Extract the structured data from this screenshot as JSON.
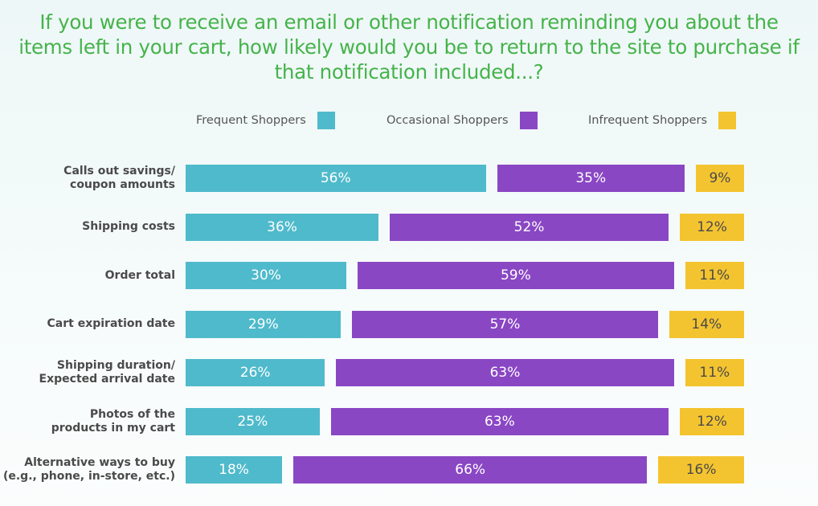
{
  "chart_data": {
    "type": "bar",
    "orientation": "horizontal",
    "stacked": true,
    "title": "If you were to receive an email or other notification reminding you about the items left in your cart, how likely would you be to return to the site to purchase if that notification included...?",
    "categories": [
      [
        "Calls out savings/",
        "coupon amounts"
      ],
      [
        "Shipping costs"
      ],
      [
        "Order total"
      ],
      [
        "Cart expiration date"
      ],
      [
        "Shipping duration/",
        "Expected arrival date"
      ],
      [
        "Photos of the",
        "products in my cart"
      ],
      [
        "Alternative ways to buy",
        "(e.g., phone, in-store, etc.)"
      ]
    ],
    "series": [
      {
        "name": "Frequent Shoppers",
        "color": "#4fbacb",
        "values": [
          56,
          36,
          30,
          29,
          26,
          25,
          18
        ]
      },
      {
        "name": "Occasional Shoppers",
        "color": "#8a47c4",
        "values": [
          35,
          52,
          59,
          57,
          63,
          63,
          66
        ]
      },
      {
        "name": "Infrequent Shoppers",
        "color": "#f4c430",
        "values": [
          9,
          12,
          11,
          14,
          11,
          12,
          16
        ]
      }
    ],
    "value_suffix": "%",
    "legend_position": "top",
    "grid": false
  },
  "colors": {
    "title": "#45b34a"
  }
}
